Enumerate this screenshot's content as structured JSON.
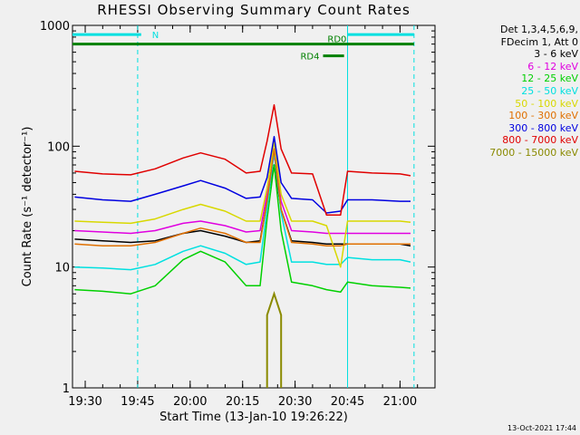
{
  "chart_data": {
    "type": "line",
    "title": "RHESSI Observing Summary Count Rates",
    "xlabel": "Start Time (13-Jan-10 19:26:22)",
    "ylabel": "Count Rate (s⁻¹ detector⁻¹)",
    "y_scale": "log",
    "ylim": [
      1,
      1000
    ],
    "xlim": [
      "19:26:22",
      "21:10"
    ],
    "x_ticks": [
      "19:30",
      "19:45",
      "20:00",
      "20:15",
      "20:30",
      "20:45",
      "21:00"
    ],
    "y_ticks": [
      "1",
      "10",
      "100",
      "1000"
    ],
    "grid": false,
    "legend_position": "right",
    "legend_header": [
      "Det 1,3,4,5,6,9,",
      "FDecim 1, Att 0"
    ],
    "x": [
      "19:27",
      "19:35",
      "19:43",
      "19:50",
      "19:58",
      "20:03",
      "20:10",
      "20:16",
      "20:20",
      "20:22",
      "20:24",
      "20:26",
      "20:29",
      "20:35",
      "20:39",
      "20:43",
      "20:45",
      "20:52",
      "21:00",
      "21:03"
    ],
    "series": [
      {
        "name": "3 - 6 keV",
        "color": "#000000",
        "values": [
          17,
          16.5,
          16,
          16.5,
          19,
          20,
          18,
          16,
          16.5,
          35,
          70,
          30,
          16.5,
          16,
          15.5,
          15.5,
          15.5,
          15.5,
          15.5,
          15
        ]
      },
      {
        "name": "6 - 12 keV",
        "color": "#e000e0",
        "values": [
          20,
          19.5,
          19,
          20,
          23,
          24,
          22,
          19.5,
          20,
          40,
          85,
          35,
          20,
          19.5,
          19,
          19,
          19,
          19,
          19,
          19
        ]
      },
      {
        "name": "12 - 25 keV",
        "color": "#00d000",
        "values": [
          6.5,
          6.3,
          6,
          7,
          11.5,
          13.5,
          11,
          7,
          7,
          25,
          70,
          20,
          7.5,
          7,
          6.5,
          6.2,
          7.5,
          7,
          6.8,
          6.7
        ]
      },
      {
        "name": "25 - 50 keV",
        "color": "#00e0e0",
        "values": [
          10,
          9.8,
          9.5,
          10.5,
          13.5,
          15,
          13,
          10.5,
          11,
          30,
          90,
          28,
          11,
          11,
          10.5,
          10.5,
          12,
          11.5,
          11.5,
          11
        ]
      },
      {
        "name": "50 - 100 keV",
        "color": "#d8d800",
        "values": [
          24,
          23.5,
          23,
          25,
          30,
          33,
          29,
          24,
          24,
          45,
          110,
          40,
          24,
          24,
          22,
          10,
          24,
          24,
          24,
          23.5
        ]
      },
      {
        "name": "100 - 300 keV",
        "color": "#e07000",
        "values": [
          15.5,
          15,
          15,
          16,
          19,
          21,
          19,
          16,
          16,
          35,
          95,
          30,
          16,
          15.5,
          15,
          15,
          15.5,
          15.5,
          15.5,
          15.5
        ]
      },
      {
        "name": "300 - 800 keV",
        "color": "#0000e0",
        "values": [
          38,
          36,
          35,
          40,
          47,
          52,
          45,
          37,
          38,
          55,
          120,
          50,
          37,
          36,
          28,
          29,
          36,
          36,
          35,
          35
        ]
      },
      {
        "name": "800 - 7000 keV",
        "color": "#e00000",
        "values": [
          62,
          59,
          58,
          65,
          80,
          88,
          78,
          60,
          62,
          110,
          220,
          95,
          60,
          59,
          27,
          27,
          62,
          60,
          59,
          57
        ]
      },
      {
        "name": "7000 - 15000 keV",
        "color": "#8a8a00",
        "values": [
          null,
          null,
          null,
          null,
          null,
          null,
          null,
          null,
          null,
          4,
          6,
          4,
          null,
          null,
          null,
          null,
          null,
          null,
          null,
          null
        ]
      }
    ],
    "annotations": [
      {
        "label": "N",
        "x_start": "19:26:22",
        "x_end": "19:46",
        "level": 840,
        "color": "#00e0e0"
      },
      {
        "label": "",
        "x_start": "20:45",
        "x_end": "21:04",
        "level": 840,
        "color": "#00e0e0"
      },
      {
        "label": "RD0",
        "x_start": "19:26:22",
        "x_end": "21:04",
        "level": 700,
        "color": "#008000"
      },
      {
        "label": "RD4",
        "x_start": "20:38",
        "x_end": "20:44",
        "level": 560,
        "color": "#008000"
      }
    ],
    "vertical_lines": [
      {
        "x": "19:45",
        "style": "dashed",
        "color": "#00e0e0"
      },
      {
        "x": "20:45",
        "style": "solid",
        "color": "#00e0e0"
      },
      {
        "x": "21:04",
        "style": "dashed",
        "color": "#00e0e0"
      }
    ]
  },
  "footer": {
    "timestamp": "13-Oct-2021 17:44"
  }
}
